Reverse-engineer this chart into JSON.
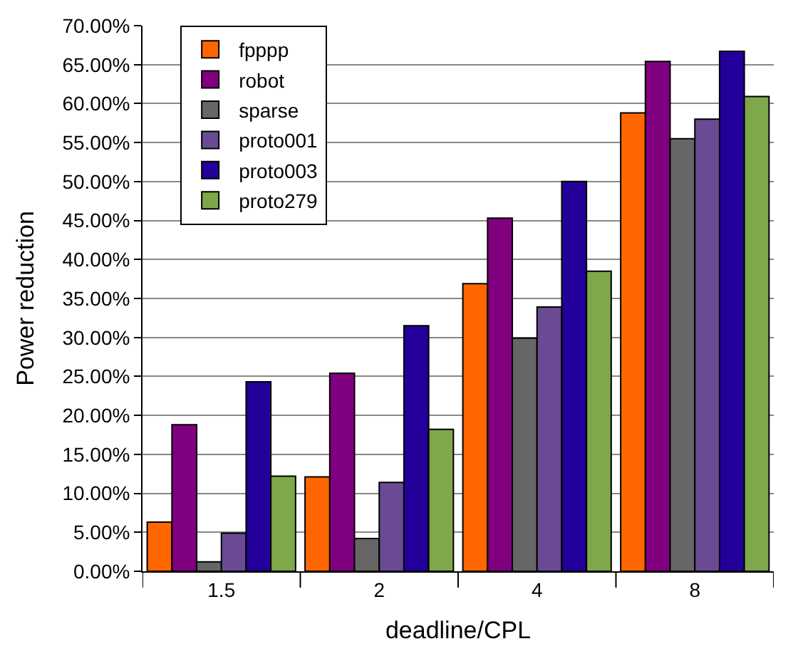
{
  "chart_data": {
    "type": "bar",
    "xlabel": "deadline/CPL",
    "ylabel": "Power reduction",
    "categories": [
      "1.5",
      "2",
      "4",
      "8"
    ],
    "series": [
      {
        "name": "fpppp",
        "color": "#ff6600",
        "values": [
          6.3,
          12.1,
          36.9,
          58.8
        ]
      },
      {
        "name": "robot",
        "color": "#800080",
        "values": [
          18.8,
          25.4,
          45.3,
          65.4
        ]
      },
      {
        "name": "sparse",
        "color": "#666666",
        "values": [
          1.2,
          4.2,
          29.9,
          55.5
        ]
      },
      {
        "name": "proto001",
        "color": "#6a4a93",
        "values": [
          4.9,
          11.4,
          33.9,
          58.0
        ]
      },
      {
        "name": "proto003",
        "color": "#220099",
        "values": [
          24.3,
          31.5,
          50.0,
          66.7
        ]
      },
      {
        "name": "proto279",
        "color": "#7ea84a",
        "values": [
          12.2,
          18.2,
          38.5,
          60.9
        ]
      }
    ],
    "ylim": [
      0,
      70
    ],
    "yticks": [
      {
        "value": 0,
        "label": "0.00%"
      },
      {
        "value": 5,
        "label": "5.00%"
      },
      {
        "value": 10,
        "label": "10.00%"
      },
      {
        "value": 15,
        "label": "15.00%"
      },
      {
        "value": 20,
        "label": "20.00%"
      },
      {
        "value": 25,
        "label": "25.00%"
      },
      {
        "value": 30,
        "label": "30.00%"
      },
      {
        "value": 35,
        "label": "35.00%"
      },
      {
        "value": 40,
        "label": "40.00%"
      },
      {
        "value": 45,
        "label": "45.00%"
      },
      {
        "value": 50,
        "label": "50.00%"
      },
      {
        "value": 55,
        "label": "55.00%"
      },
      {
        "value": 60,
        "label": "60.00%"
      },
      {
        "value": 65,
        "label": "65.00%"
      },
      {
        "value": 70,
        "label": "70.00%"
      }
    ],
    "grid": "y",
    "legend": "top left"
  }
}
